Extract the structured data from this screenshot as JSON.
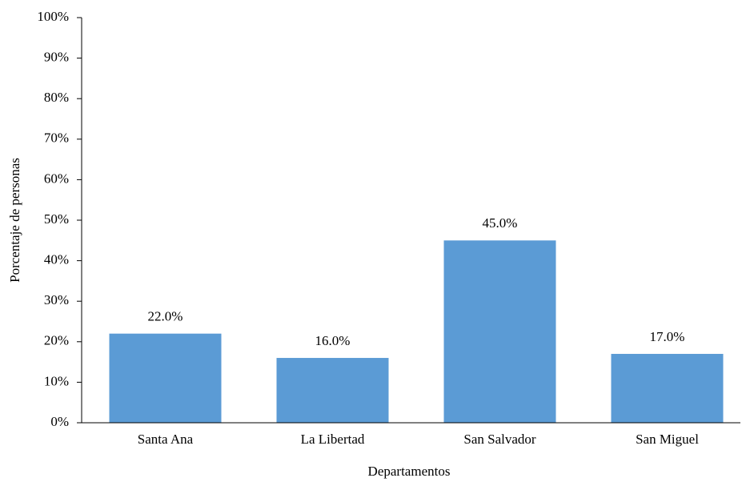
{
  "chart_data": {
    "type": "bar",
    "x_label": "Departamentos",
    "y_label": "Porcentaje de personas",
    "categories": [
      "Santa Ana",
      "La Libertad",
      "San Salvador",
      "San Miguel"
    ],
    "values": [
      22,
      16,
      45,
      17
    ],
    "value_labels": [
      "22.0%",
      "16.0%",
      "45.0%",
      "17.0%"
    ],
    "color": "#5b9bd5",
    "ylim": [
      0,
      100
    ],
    "yticks": [
      {
        "value": 0,
        "label": "0%"
      },
      {
        "value": 10,
        "label": "10%"
      },
      {
        "value": 20,
        "label": "20%"
      },
      {
        "value": 30,
        "label": "30%"
      },
      {
        "value": 40,
        "label": "40%"
      },
      {
        "value": 50,
        "label": "50%"
      },
      {
        "value": 60,
        "label": "60%"
      },
      {
        "value": 70,
        "label": "70%"
      },
      {
        "value": 80,
        "label": "80%"
      },
      {
        "value": 90,
        "label": "90%"
      },
      {
        "value": 100,
        "label": "100%"
      }
    ],
    "grid": false
  }
}
